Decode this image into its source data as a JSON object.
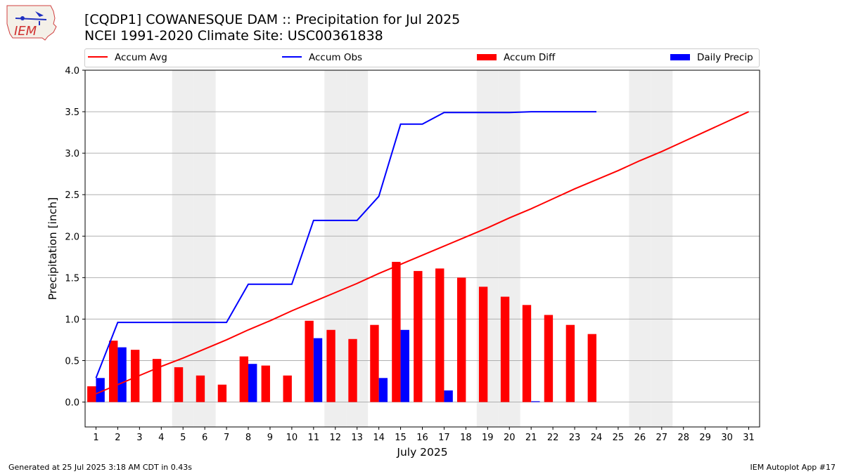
{
  "header": {
    "title_line1": "[CQDP1] COWANESQUE DAM :: Precipitation for Jul 2025",
    "title_line2": "NCEI 1991-2020 Climate Site: USC00361838",
    "logo_text": "IEM"
  },
  "footer": {
    "left": "Generated at 25 Jul 2025 3:18 AM CDT in 0.43s",
    "right": "IEM Autoplot App #17"
  },
  "colors": {
    "avg": "#ff0000",
    "obs": "#0000ff",
    "diff": "#ff0000",
    "daily": "#0000ff",
    "weekend_shade": "#eeeeee",
    "grid": "#b0b0b0"
  },
  "chart_data": {
    "type": "bar",
    "xlabel": "July 2025",
    "ylabel": "Precipitation [inch]",
    "xlim": [
      0.5,
      31.5
    ],
    "ylim": [
      -0.3,
      4.0
    ],
    "yticks": [
      0.0,
      0.5,
      1.0,
      1.5,
      2.0,
      2.5,
      3.0,
      3.5,
      4.0
    ],
    "ytick_labels": [
      "0.0",
      "0.5",
      "1.0",
      "1.5",
      "2.0",
      "2.5",
      "3.0",
      "3.5",
      "4.0"
    ],
    "days": [
      1,
      2,
      3,
      4,
      5,
      6,
      7,
      8,
      9,
      10,
      11,
      12,
      13,
      14,
      15,
      16,
      17,
      18,
      19,
      20,
      21,
      22,
      23,
      24,
      25,
      26,
      27,
      28,
      29,
      30,
      31
    ],
    "shaded_days": [
      5,
      6,
      12,
      13,
      19,
      20,
      26,
      27
    ],
    "legend": [
      {
        "key": "avg",
        "label": "Accum Avg",
        "kind": "line"
      },
      {
        "key": "obs",
        "label": "Accum Obs",
        "kind": "line"
      },
      {
        "key": "diff",
        "label": "Accum Diff",
        "kind": "bar"
      },
      {
        "key": "daily",
        "label": "Daily Precip",
        "kind": "bar"
      }
    ],
    "series": [
      {
        "name": "Accum Avg",
        "kind": "line",
        "values": [
          0.1,
          0.21,
          0.32,
          0.43,
          0.53,
          0.64,
          0.75,
          0.87,
          0.98,
          1.1,
          1.21,
          1.32,
          1.43,
          1.55,
          1.66,
          1.77,
          1.88,
          1.99,
          2.1,
          2.22,
          2.33,
          2.45,
          2.57,
          2.68,
          2.79,
          2.91,
          3.02,
          3.14,
          3.26,
          3.38,
          3.5
        ]
      },
      {
        "name": "Accum Obs",
        "kind": "line",
        "values": [
          0.29,
          0.96,
          0.96,
          0.96,
          0.96,
          0.96,
          0.96,
          1.42,
          1.42,
          1.42,
          2.19,
          2.19,
          2.19,
          2.48,
          3.35,
          3.35,
          3.49,
          3.49,
          3.49,
          3.49,
          3.5,
          3.5,
          3.5,
          3.5
        ]
      },
      {
        "name": "Accum Diff",
        "kind": "bar",
        "values": [
          0.19,
          0.74,
          0.63,
          0.52,
          0.42,
          0.32,
          0.21,
          0.55,
          0.44,
          0.32,
          0.98,
          0.87,
          0.76,
          0.93,
          1.69,
          1.58,
          1.61,
          1.5,
          1.39,
          1.27,
          1.17,
          1.05,
          0.93,
          0.82
        ]
      },
      {
        "name": "Daily Precip",
        "kind": "bar",
        "values": [
          0.29,
          0.66,
          0,
          0,
          0,
          0,
          0,
          0.46,
          0,
          0,
          0.77,
          0,
          0,
          0.29,
          0.87,
          0,
          0.14,
          0,
          0,
          0,
          0.01,
          0,
          0,
          0
        ]
      }
    ]
  }
}
